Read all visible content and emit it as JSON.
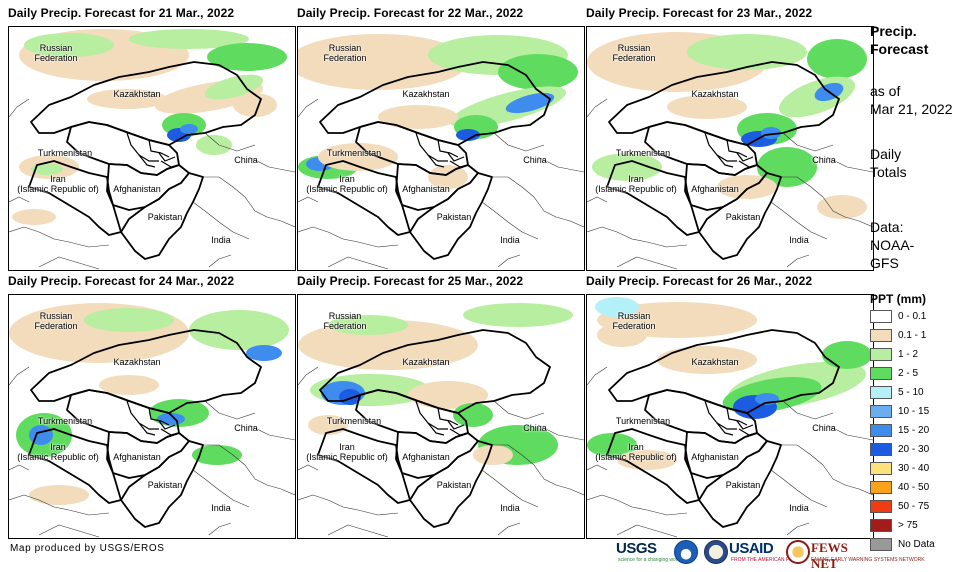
{
  "panels": [
    {
      "title": "Daily Precip. Forecast for 21 Mar., 2022",
      "variant": 0
    },
    {
      "title": "Daily Precip. Forecast for 22 Mar., 2022",
      "variant": 1
    },
    {
      "title": "Daily Precip. Forecast for 23 Mar., 2022",
      "variant": 2
    },
    {
      "title": "Daily Precip. Forecast for 24 Mar., 2022",
      "variant": 3
    },
    {
      "title": "Daily Precip. Forecast for 25 Mar., 2022",
      "variant": 4
    },
    {
      "title": "Daily Precip. Forecast for 26 Mar., 2022",
      "variant": 5
    }
  ],
  "map_labels": {
    "russia": "Russian\nFederation",
    "kazakhstan": "Kazakhstan",
    "turkmenistan": "Turkmenistan",
    "iran": "Iran\n(Islamic Republic of)",
    "afghanistan": "Afghanistan",
    "pakistan": "Pakistan",
    "china": "China",
    "india": "India"
  },
  "sidebar": {
    "title_line1": "Precip.",
    "title_line2": "Forecast",
    "asof_line1": "as of",
    "asof_line2": "Mar 21, 2022",
    "totals_line1": "Daily",
    "totals_line2": "Totals",
    "data_line1": "Data:",
    "data_line2": "NOAA-",
    "data_line3": "GFS"
  },
  "legend": {
    "title": "PPT (mm)",
    "items": [
      {
        "label": "0 - 0.1",
        "color": "#ffffff"
      },
      {
        "label": "0.1 - 1",
        "color": "#f2dcbc"
      },
      {
        "label": "1 - 2",
        "color": "#b8eea0"
      },
      {
        "label": "2 - 5",
        "color": "#5fdc5f"
      },
      {
        "label": "5 - 10",
        "color": "#b4f0f8"
      },
      {
        "label": "10 - 15",
        "color": "#6aaef0"
      },
      {
        "label": "15 - 20",
        "color": "#3f8cef"
      },
      {
        "label": "20 - 30",
        "color": "#1c5ce0"
      },
      {
        "label": "30 - 40",
        "color": "#fde27c"
      },
      {
        "label": "40 - 50",
        "color": "#f9a21c"
      },
      {
        "label": "50 - 75",
        "color": "#f03c12"
      },
      {
        "label": "> 75",
        "color": "#a31c1c"
      },
      {
        "label": "No Data",
        "color": "#999999"
      }
    ]
  },
  "footer": {
    "credit": "Map produced by USGS/EROS",
    "logos": {
      "usgs": "USGS",
      "usgs_tagline": "science for a changing world",
      "usaid": "USAID",
      "usaid_tagline": "FROM THE AMERICAN PEOPLE",
      "fews": "FEWS NET",
      "fews_tagline": "FAMINE EARLY WARNING SYSTEMS NETWORK"
    }
  }
}
